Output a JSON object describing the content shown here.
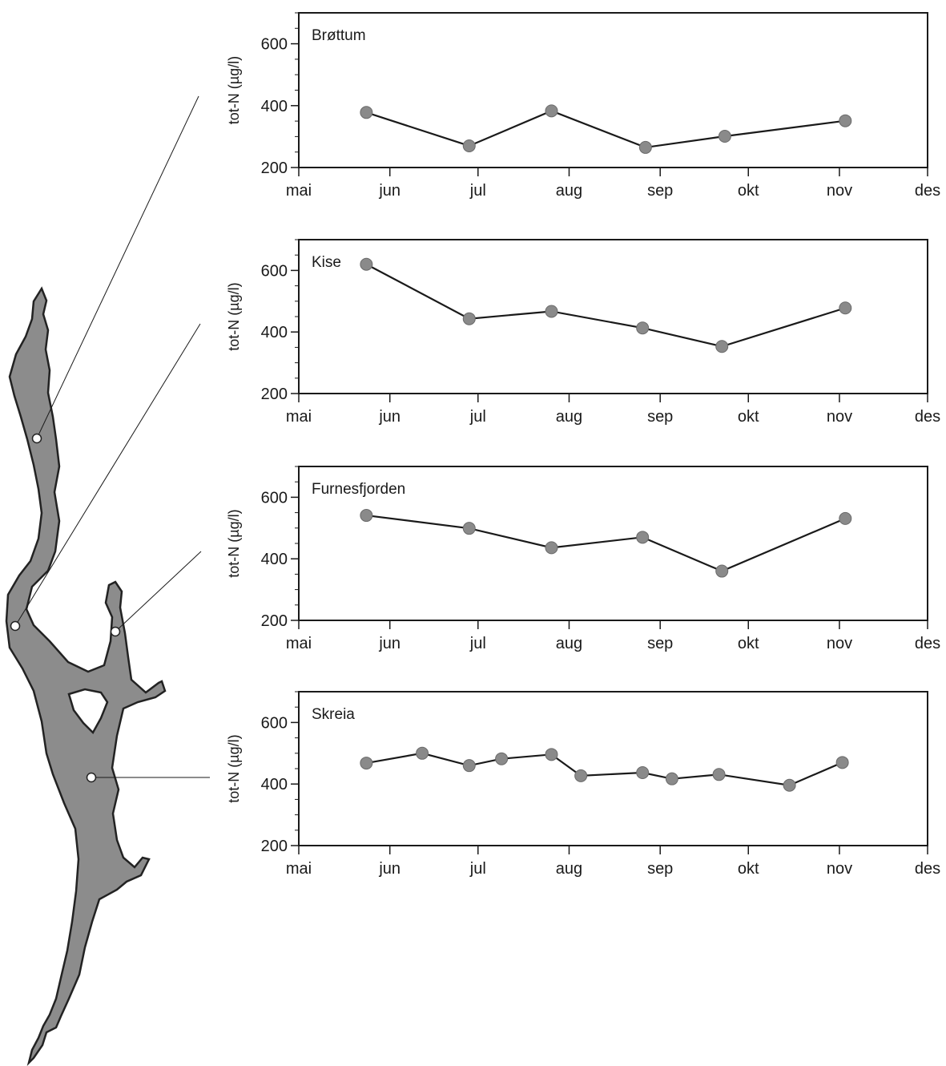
{
  "chart_data": [
    {
      "type": "line",
      "station": "Brøttum",
      "ylabel": "tot-N (µg/l)",
      "ylim": [
        200,
        700
      ],
      "yticks": [
        200,
        400,
        600
      ],
      "xticks": [
        "mai",
        "jun",
        "jul",
        "aug",
        "sep",
        "okt",
        "nov",
        "des"
      ],
      "xlim": [
        "mai",
        "des"
      ],
      "x": [
        "2024-05-24",
        "2024-06-28",
        "2024-07-26",
        "2024-08-27",
        "2024-09-23",
        "2024-11-03"
      ],
      "y": [
        378,
        270,
        383,
        265,
        301,
        351
      ]
    },
    {
      "type": "line",
      "station": "Kise",
      "ylabel": "tot-N (µg/l)",
      "ylim": [
        200,
        700
      ],
      "yticks": [
        200,
        400,
        600
      ],
      "xticks": [
        "mai",
        "jun",
        "jul",
        "aug",
        "sep",
        "okt",
        "nov",
        "des"
      ],
      "xlim": [
        "mai",
        "des"
      ],
      "x": [
        "2024-05-24",
        "2024-06-28",
        "2024-07-26",
        "2024-08-26",
        "2024-09-22",
        "2024-11-03"
      ],
      "y": [
        620,
        443,
        467,
        413,
        353,
        478
      ]
    },
    {
      "type": "line",
      "station": "Furnesfjorden",
      "ylabel": "tot-N (µg/l)",
      "ylim": [
        200,
        700
      ],
      "yticks": [
        200,
        400,
        600
      ],
      "xticks": [
        "mai",
        "jun",
        "jul",
        "aug",
        "sep",
        "okt",
        "nov",
        "des"
      ],
      "xlim": [
        "mai",
        "des"
      ],
      "x": [
        "2024-05-24",
        "2024-06-28",
        "2024-07-26",
        "2024-08-26",
        "2024-09-22",
        "2024-11-03"
      ],
      "y": [
        541,
        499,
        436,
        470,
        360,
        531
      ]
    },
    {
      "type": "line",
      "station": "Skreia",
      "ylabel": "tot-N (µg/l)",
      "ylim": [
        200,
        700
      ],
      "yticks": [
        200,
        400,
        600
      ],
      "xticks": [
        "mai",
        "jun",
        "jul",
        "aug",
        "sep",
        "okt",
        "nov",
        "des"
      ],
      "xlim": [
        "mai",
        "des"
      ],
      "x": [
        "2024-05-24",
        "2024-06-12",
        "2024-06-28",
        "2024-07-09",
        "2024-07-26",
        "2024-08-05",
        "2024-08-26",
        "2024-09-05",
        "2024-09-21",
        "2024-10-15",
        "2024-11-02"
      ],
      "y": [
        468,
        500,
        460,
        482,
        496,
        427,
        437,
        417,
        431,
        396,
        470
      ]
    }
  ]
}
